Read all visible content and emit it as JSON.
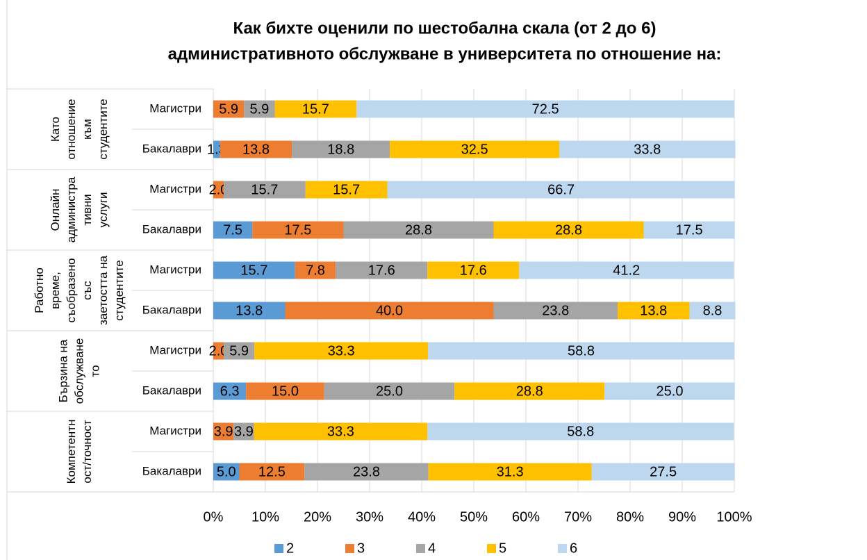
{
  "chart_data": {
    "type": "stacked-bar-horizontal",
    "title_lines": [
      "Как бихте оценили по шестобална скала (от 2 до 6)",
      "административното обслужване в университета по отношение на:"
    ],
    "groups": [
      {
        "lines": [
          "Като",
          "отношение",
          "към",
          "студентите"
        ]
      },
      {
        "lines": [
          "Онлайн",
          "администра",
          "тивни",
          "услуги"
        ]
      },
      {
        "lines": [
          "Работно",
          "време,",
          "съобразено",
          "със",
          "заетостта на",
          "студентите"
        ]
      },
      {
        "lines": [
          "Бързина на",
          "обслужване",
          "то"
        ]
      },
      {
        "lines": [
          "Компетентн",
          "ост/точност"
        ]
      }
    ],
    "categories": [
      "Магистри",
      "Бакалаври",
      "Магистри",
      "Бакалаври",
      "Магистри",
      "Бакалаври",
      "Магистри",
      "Бакалаври",
      "Магистри",
      "Бакалаври"
    ],
    "series": [
      {
        "name": "2",
        "color": "#5b9bd5",
        "values": [
          null,
          1.3,
          null,
          7.5,
          15.7,
          13.8,
          null,
          6.3,
          null,
          5.0
        ],
        "value_labels": [
          null,
          "1.3",
          null,
          "7.5",
          "15.7",
          "13.8",
          null,
          "6.3",
          null,
          "5.0"
        ]
      },
      {
        "name": "3",
        "color": "#ed7d31",
        "values": [
          5.9,
          13.8,
          2.0,
          17.5,
          7.8,
          40.0,
          2.0,
          15.0,
          3.9,
          12.5
        ],
        "value_labels": [
          "5.9",
          "13.8",
          "2.0",
          "17.5",
          "7.8",
          "40.0",
          "2.0",
          "15.0",
          "3.9",
          "12.5"
        ]
      },
      {
        "name": "4",
        "color": "#a5a5a5",
        "values": [
          5.9,
          18.8,
          15.7,
          28.8,
          17.6,
          23.8,
          5.9,
          25.0,
          3.9,
          23.8
        ],
        "value_labels": [
          "5.9",
          "18.8",
          "15.7",
          "28.8",
          "17.6",
          "23.8",
          "5.9",
          "25.0",
          "3.9",
          "23.8"
        ]
      },
      {
        "name": "5",
        "color": "#ffc000",
        "values": [
          15.7,
          32.5,
          15.7,
          28.8,
          17.6,
          13.8,
          33.3,
          28.8,
          33.3,
          31.3
        ],
        "value_labels": [
          "15.7",
          "32.5",
          "15.7",
          "28.8",
          "17.6",
          "13.8",
          "33.3",
          "28.8",
          "33.3",
          "31.3"
        ]
      },
      {
        "name": "6",
        "color": "#bdd7ee",
        "values": [
          72.5,
          33.8,
          66.7,
          17.5,
          41.2,
          8.8,
          58.8,
          25.0,
          58.8,
          27.5
        ],
        "value_labels": [
          "72.5",
          "33.8",
          "66.7",
          "17.5",
          "41.2",
          "8.8",
          "58.8",
          "25.0",
          "58.8",
          "27.5"
        ]
      }
    ],
    "xlim": [
      0,
      100
    ],
    "xticks": [
      {
        "value": 0,
        "label": "0%"
      },
      {
        "value": 10,
        "label": "10%"
      },
      {
        "value": 20,
        "label": "20%"
      },
      {
        "value": 30,
        "label": "30%"
      },
      {
        "value": 40,
        "label": "40%"
      },
      {
        "value": 50,
        "label": "50%"
      },
      {
        "value": 60,
        "label": "60%"
      },
      {
        "value": 70,
        "label": "70%"
      },
      {
        "value": 80,
        "label": "80%"
      },
      {
        "value": 90,
        "label": "90%"
      },
      {
        "value": 100,
        "label": "100%"
      }
    ],
    "grid": true,
    "legend": "bottom"
  }
}
